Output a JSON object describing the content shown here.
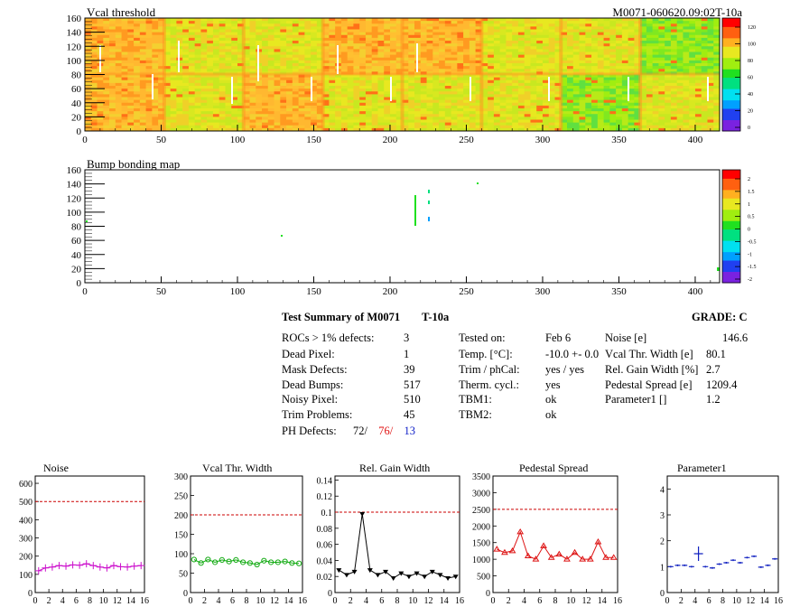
{
  "header": {
    "title_left": "Vcal threshold",
    "title_right": "M0071-060620.09:02T-10a"
  },
  "maps": [
    {
      "title": "Vcal threshold",
      "x_ticks": [
        "0",
        "50",
        "100",
        "150",
        "200",
        "250",
        "300",
        "350",
        "400"
      ],
      "y_ticks": [
        "0",
        "20",
        "40",
        "60",
        "80",
        "100",
        "120",
        "140",
        "160"
      ],
      "palette_ticks": [
        "120",
        "100",
        "80",
        "60",
        "40",
        "20",
        "0"
      ]
    },
    {
      "title": "Bump bonding map",
      "x_ticks": [
        "0",
        "50",
        "100",
        "150",
        "200",
        "250",
        "300",
        "350",
        "400"
      ],
      "y_ticks": [
        "0",
        "20",
        "40",
        "60",
        "80",
        "100",
        "120",
        "140",
        "160"
      ],
      "palette_ticks": [
        "2",
        "1.5",
        "1",
        "0.5",
        "0",
        "-0.5",
        "-1",
        "-1.5",
        "-2"
      ]
    }
  ],
  "summary": {
    "title": "Test Summary of M0071",
    "test_name": "T-10a",
    "grade_label": "GRADE:",
    "grade_value": "C",
    "col1": [
      {
        "label": "ROCs > 1% defects:",
        "value": "3"
      },
      {
        "label": "Dead Pixel:",
        "value": "1"
      },
      {
        "label": "Mask Defects:",
        "value": "39"
      },
      {
        "label": "Dead Bumps:",
        "value": "517"
      },
      {
        "label": "Noisy Pixel:",
        "value": "510"
      },
      {
        "label": "Trim Problems:",
        "value": "45"
      }
    ],
    "ph_defects": {
      "label": "PH Defects:",
      "v1": "72/",
      "v2": "76/",
      "v3": "13"
    },
    "col2": [
      {
        "label": "Tested on:",
        "value": "Feb 6"
      },
      {
        "label": "Temp. [°C]:",
        "value": "-10.0 +- 0.0"
      },
      {
        "label": "Trim / phCal:",
        "value": "yes / yes"
      },
      {
        "label": "Therm. cycl.:",
        "value": "yes"
      },
      {
        "label": "TBM1:",
        "value": "ok"
      },
      {
        "label": "TBM2:",
        "value": "ok"
      }
    ],
    "col3": [
      {
        "label": "Noise [e]",
        "value": "146.6"
      },
      {
        "label": "Vcal Thr. Width [e]",
        "value": "80.1"
      },
      {
        "label": "Rel. Gain Width [%]",
        "value": "2.7"
      },
      {
        "label": "Pedestal Spread [e]",
        "value": "1209.4"
      },
      {
        "label": "Parameter1 []",
        "value": "1.2"
      }
    ]
  },
  "colors": {
    "palette": [
      "#7a22e0",
      "#2040f0",
      "#00a0ff",
      "#00e0f0",
      "#00e080",
      "#20e020",
      "#a0ee10",
      "#e8e820",
      "#ffb020",
      "#ff6010",
      "#ff0000"
    ],
    "noise": "#cc11cc",
    "vcal": "#11aa11",
    "gain": "#000000",
    "pedestal": "#dd1111",
    "parameter1": "#1020c0",
    "limit": "#cc0000"
  },
  "chart_data": [
    {
      "type": "line",
      "title": "Noise",
      "x_ticks": [
        "0",
        "2",
        "4",
        "6",
        "8",
        "10",
        "12",
        "14",
        "16"
      ],
      "y_ticks": [
        "0",
        "100",
        "200",
        "300",
        "400",
        "500",
        "600"
      ],
      "xlim": [
        0,
        16
      ],
      "ylim": [
        0,
        640
      ],
      "x": [
        0,
        1,
        2,
        3,
        4,
        5,
        6,
        7,
        8,
        9,
        10,
        11,
        12,
        13,
        14,
        15
      ],
      "values": [
        120,
        135,
        140,
        148,
        145,
        152,
        150,
        158,
        148,
        140,
        135,
        148,
        142,
        140,
        145,
        148
      ],
      "limit": 500,
      "marker": "plus",
      "color": "#cc11cc"
    },
    {
      "type": "line",
      "title": "Vcal Thr. Width",
      "x_ticks": [
        "0",
        "2",
        "4",
        "6",
        "8",
        "10",
        "12",
        "14",
        "16"
      ],
      "y_ticks": [
        "0",
        "50",
        "100",
        "150",
        "200",
        "250",
        "300"
      ],
      "xlim": [
        0,
        16
      ],
      "ylim": [
        0,
        300
      ],
      "x": [
        0,
        1,
        2,
        3,
        4,
        5,
        6,
        7,
        8,
        9,
        10,
        11,
        12,
        13,
        14,
        15
      ],
      "values": [
        85,
        76,
        85,
        78,
        84,
        80,
        84,
        78,
        76,
        72,
        82,
        78,
        78,
        80,
        76,
        75
      ],
      "limit": 200,
      "marker": "circle",
      "color": "#11aa11"
    },
    {
      "type": "line",
      "title": "Rel. Gain Width",
      "x_ticks": [
        "0",
        "2",
        "4",
        "6",
        "8",
        "10",
        "12",
        "14",
        "16"
      ],
      "y_ticks": [
        "0",
        "0.02",
        "0.04",
        "0.06",
        "0.08",
        "0.1",
        "0.12",
        "0.14"
      ],
      "xlim": [
        0,
        16
      ],
      "ylim": [
        0,
        0.145
      ],
      "x": [
        0,
        1,
        2,
        3,
        4,
        5,
        6,
        7,
        8,
        9,
        10,
        11,
        12,
        13,
        14,
        15
      ],
      "values": [
        0.028,
        0.022,
        0.026,
        0.098,
        0.028,
        0.022,
        0.026,
        0.018,
        0.024,
        0.02,
        0.024,
        0.02,
        0.026,
        0.022,
        0.018,
        0.02
      ],
      "limit": 0.1,
      "marker": "triangle-down",
      "color": "#000000"
    },
    {
      "type": "line",
      "title": "Pedestal Spread",
      "x_ticks": [
        "0",
        "2",
        "4",
        "6",
        "8",
        "10",
        "12",
        "14",
        "16"
      ],
      "y_ticks": [
        "0",
        "500",
        "1000",
        "1500",
        "2000",
        "2500",
        "3000",
        "3500"
      ],
      "xlim": [
        0,
        16
      ],
      "ylim": [
        0,
        3500
      ],
      "x": [
        0,
        1,
        2,
        3,
        4,
        5,
        6,
        7,
        8,
        9,
        10,
        11,
        12,
        13,
        14,
        15
      ],
      "values": [
        1300,
        1200,
        1250,
        1820,
        1100,
        1000,
        1400,
        1050,
        1150,
        1000,
        1200,
        1000,
        1000,
        1520,
        1050,
        1050
      ],
      "limit": 2500,
      "marker": "triangle-up",
      "color": "#dd1111"
    },
    {
      "type": "scatter",
      "title": "Parameter1",
      "x_ticks": [
        "0",
        "2",
        "4",
        "6",
        "8",
        "10",
        "12",
        "14",
        "16"
      ],
      "y_ticks": [
        "0",
        "1",
        "2",
        "3",
        "4"
      ],
      "xlim": [
        0,
        16
      ],
      "ylim": [
        0,
        4.5
      ],
      "x": [
        0,
        1,
        2,
        3,
        4,
        5,
        6,
        7,
        8,
        9,
        10,
        11,
        12,
        13,
        14,
        15
      ],
      "values": [
        1.0,
        1.05,
        1.05,
        1.0,
        1.5,
        1.0,
        0.95,
        1.1,
        1.15,
        1.25,
        1.15,
        1.35,
        1.4,
        0.98,
        1.05,
        1.3
      ],
      "marker": "error-cross",
      "color": "#1020c0"
    }
  ]
}
